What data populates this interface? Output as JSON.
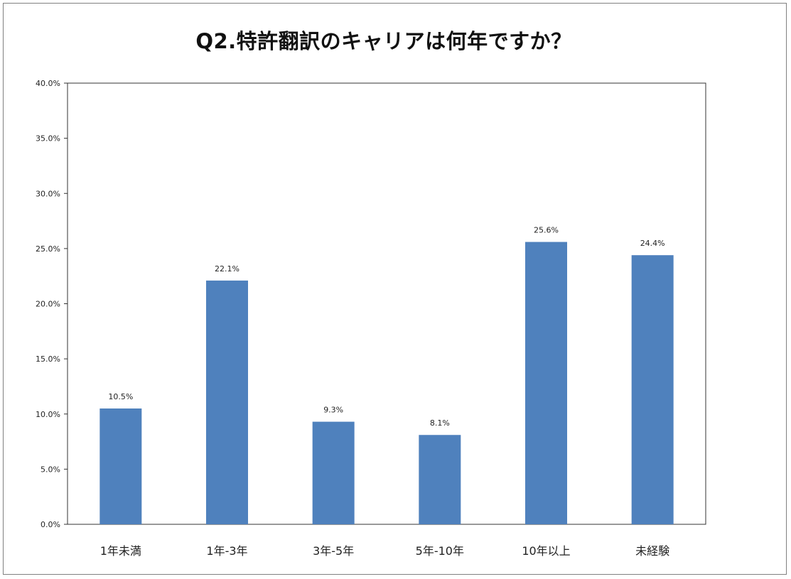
{
  "chart_data": {
    "type": "bar",
    "title": "Q2.特許翻訳のキャリアは何年ですか？",
    "categories": [
      "1年未満",
      "1年-3年",
      "3年-5年",
      "5年-10年",
      "10年以上",
      "未経験"
    ],
    "values": [
      10.5,
      22.1,
      9.3,
      8.1,
      25.6,
      24.4
    ],
    "data_labels": [
      "10.5%",
      "22.1%",
      "9.3%",
      "8.1%",
      "25.6%",
      "24.4%"
    ],
    "ylim": [
      0,
      40
    ],
    "yticks": [
      "0.0%",
      "5.0%",
      "10.0%",
      "15.0%",
      "20.0%",
      "25.0%",
      "30.0%",
      "35.0%",
      "40.0%"
    ],
    "ytick_values": [
      0,
      5,
      10,
      15,
      20,
      25,
      30,
      35,
      40
    ],
    "grid": false,
    "legend": "none",
    "bar_color": "#4f81bd"
  }
}
